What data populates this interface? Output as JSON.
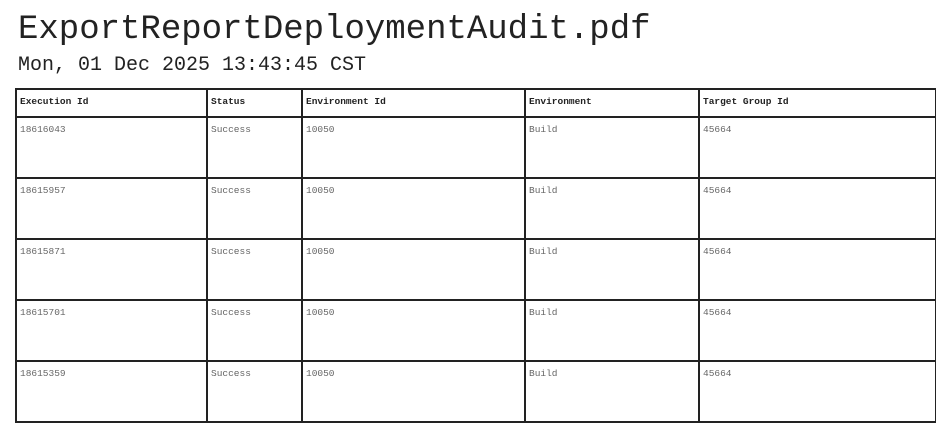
{
  "document": {
    "title": "ExportReportDeploymentAudit.pdf",
    "date": "Mon, 01 Dec 2025 13:43:45 CST"
  },
  "table": {
    "columns": [
      "Execution Id",
      "Status",
      "Environment Id",
      "Environment",
      "Target Group Id"
    ],
    "rows": [
      [
        "18616043",
        "Success",
        "10050",
        "Build",
        "45664"
      ],
      [
        "18615957",
        "Success",
        "10050",
        "Build",
        "45664"
      ],
      [
        "18615871",
        "Success",
        "10050",
        "Build",
        "45664"
      ],
      [
        "18615701",
        "Success",
        "10050",
        "Build",
        "45664"
      ],
      [
        "18615359",
        "Success",
        "10050",
        "Build",
        "45664"
      ]
    ]
  }
}
